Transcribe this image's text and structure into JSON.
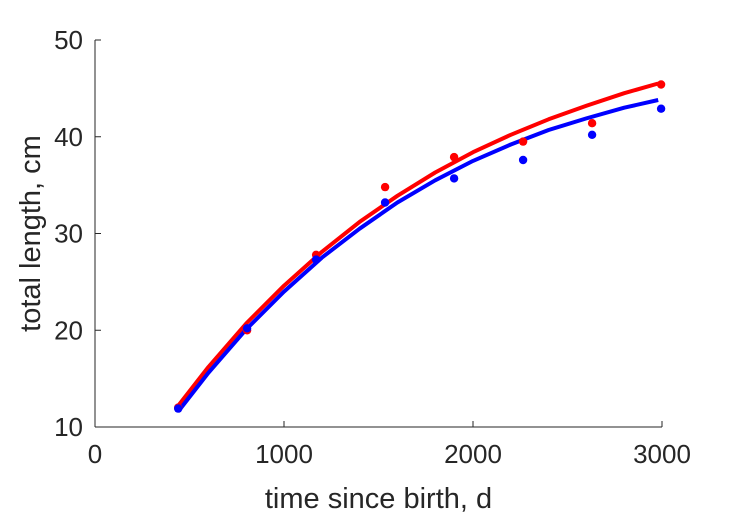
{
  "chart_data": {
    "type": "scatter",
    "title": "",
    "xlabel": "time since birth, d",
    "ylabel": "total length, cm",
    "xlim": [
      0,
      3000
    ],
    "ylim": [
      10,
      50
    ],
    "xticks": [
      0,
      1000,
      2000,
      3000
    ],
    "yticks": [
      10,
      20,
      30,
      40,
      50
    ],
    "grid": false,
    "legend": false,
    "series": [
      {
        "color": "#ff0000",
        "marker": "dot",
        "x": [
          440,
          805,
          1170,
          1535,
          1900,
          2265,
          2630,
          2995
        ],
        "y": [
          12.0,
          20.0,
          27.8,
          34.8,
          37.9,
          39.5,
          41.4,
          45.4
        ],
        "fit": {
          "x": [
            440,
            600,
            800,
            1000,
            1200,
            1400,
            1600,
            1800,
            2000,
            2200,
            2400,
            2600,
            2800,
            2980
          ],
          "y": [
            12.2,
            16.2,
            20.7,
            24.6,
            28.1,
            31.2,
            33.9,
            36.3,
            38.4,
            40.2,
            41.8,
            43.2,
            44.5,
            45.5
          ]
        }
      },
      {
        "color": "#0000ff",
        "marker": "dot",
        "x": [
          440,
          805,
          1170,
          1535,
          1900,
          2265,
          2630,
          2995
        ],
        "y": [
          11.9,
          20.2,
          27.3,
          33.2,
          35.7,
          37.6,
          40.2,
          42.9
        ],
        "fit": {
          "x": [
            440,
            600,
            800,
            1000,
            1200,
            1400,
            1600,
            1800,
            2000,
            2200,
            2400,
            2600,
            2800,
            2980
          ],
          "y": [
            11.6,
            15.6,
            20.1,
            24.0,
            27.5,
            30.5,
            33.2,
            35.5,
            37.5,
            39.2,
            40.7,
            41.9,
            43.0,
            43.8
          ]
        }
      }
    ]
  }
}
